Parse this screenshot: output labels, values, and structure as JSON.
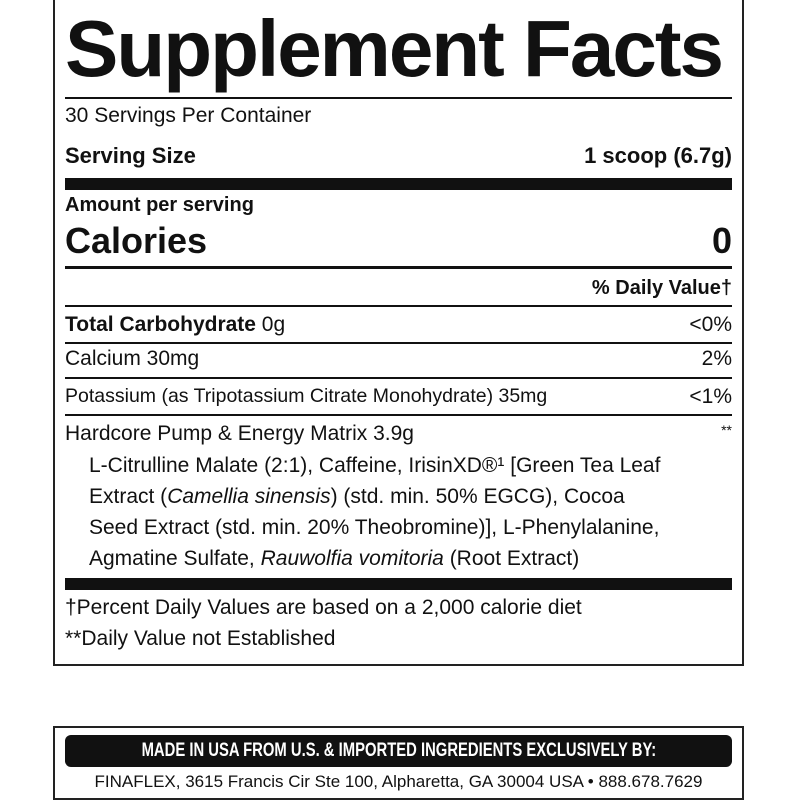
{
  "title": "Supplement Facts",
  "servings_per_container": "30 Servings Per Container",
  "serving_size_label": "Serving Size",
  "serving_size_value": "1 scoop (6.7g)",
  "amount_per_serving": "Amount per serving",
  "calories_label": "Calories",
  "calories_value": "0",
  "daily_value_header": "% Daily Value†",
  "rows": [
    {
      "name": "Total Carbohydrate",
      "amount": " 0g",
      "dv": "<0%"
    },
    {
      "name": "Calcium 30mg",
      "dv": "2%"
    },
    {
      "name": "Potassium (as Tripotassium Citrate Monohydrate) 35mg",
      "dv": "<1%"
    },
    {
      "name": "Hardcore Pump & Energy Matrix 3.9g",
      "dv": "**"
    }
  ],
  "matrix_lines": [
    [
      "L-Citrulline Malate (2:1), Caffeine, IrisinXD®¹ [Green Tea Leaf"
    ],
    [
      "Extract (",
      "Camellia sinensis",
      ") (std. min. 50% EGCG), Cocoa"
    ],
    [
      "Seed Extract (std. min. 20% Theobromine)], L-Phenylalanine,"
    ],
    [
      "Agmatine Sulfate, ",
      "Rauwolfia vomitoria",
      " (Root Extract)"
    ]
  ],
  "footnotes": [
    "†Percent Daily Values are based on a 2,000 calorie diet",
    "**Daily Value not Established"
  ],
  "made_in": "MADE IN USA FROM U.S. & IMPORTED INGREDIENTS EXCLUSIVELY BY:",
  "address": "FINAFLEX, 3615 Francis Cir Ste 100, Alpharetta, GA 30004 USA • 888.678.7629"
}
